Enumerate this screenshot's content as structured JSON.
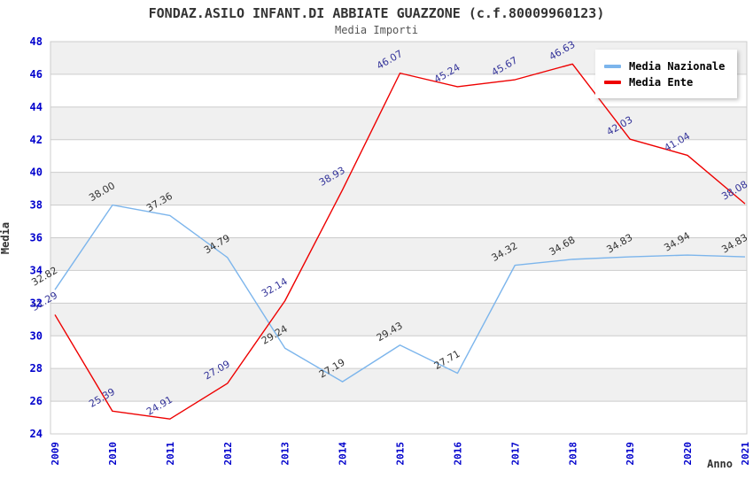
{
  "title": "FONDAZ.ASILO INFANT.DI ABBIATE GUAZZONE (c.f.80009960123)",
  "subtitle": "Media Importi",
  "chart_data": {
    "type": "line",
    "x": [
      2009,
      2010,
      2011,
      2012,
      2013,
      2014,
      2015,
      2016,
      2017,
      2018,
      2019,
      2020,
      2021
    ],
    "xlabel": "Anno",
    "ylabel": "Media",
    "ylim": [
      24,
      48
    ],
    "ytick_step": 2,
    "grid": true,
    "band_fill": "alternating gray/white, gray topmost band",
    "legend_position": "top-right",
    "series": [
      {
        "name": "Media Nazionale",
        "color": "#7cb5ec",
        "label_color": "#333333",
        "values": [
          32.82,
          38.0,
          37.36,
          34.79,
          29.24,
          27.19,
          29.43,
          27.71,
          34.32,
          34.68,
          34.83,
          34.94,
          34.83
        ]
      },
      {
        "name": "Media Ente",
        "color": "#ee0000",
        "label_color": "#333399",
        "values": [
          31.29,
          25.39,
          24.91,
          27.09,
          32.14,
          38.93,
          46.07,
          45.24,
          45.67,
          46.63,
          42.03,
          41.04,
          38.08
        ]
      }
    ]
  },
  "colors": {
    "tick_label": "#0000cc",
    "axis_title": "#333333",
    "grid_line": "#cccccc",
    "band_gray": "#f0f0f0",
    "plot_border": "#cccccc",
    "background": "#ffffff"
  }
}
